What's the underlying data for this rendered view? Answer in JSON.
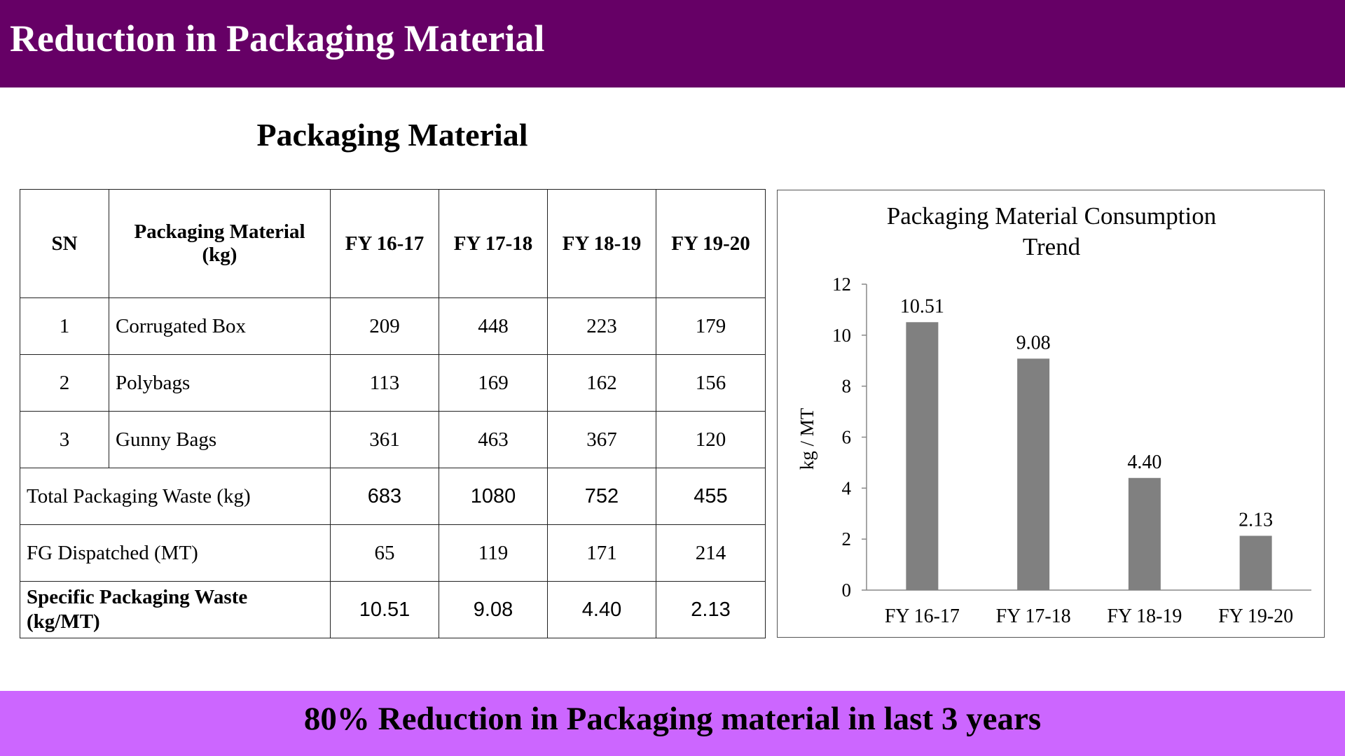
{
  "header": {
    "title": "Reduction in Packaging Material"
  },
  "section": {
    "title": "Packaging Material"
  },
  "table": {
    "headers": [
      "SN",
      "Packaging Material (kg)",
      "FY 16-17",
      "FY 17-18",
      "FY 18-19",
      "FY 19-20"
    ],
    "rows": [
      {
        "sn": "1",
        "material": "Corrugated Box",
        "values": [
          "209",
          "448",
          "223",
          "179"
        ]
      },
      {
        "sn": "2",
        "material": "Polybags",
        "values": [
          "113",
          "169",
          "162",
          "156"
        ]
      },
      {
        "sn": "3",
        "material": "Gunny Bags",
        "values": [
          "361",
          "463",
          "367",
          "120"
        ]
      }
    ],
    "total": {
      "label": "Total Packaging Waste (kg)",
      "values": [
        "683",
        "1080",
        "752",
        "455"
      ]
    },
    "fg": {
      "label": "FG Dispatched (MT)",
      "values": [
        "65",
        "119",
        "171",
        "214"
      ]
    },
    "specific": {
      "label": "Specific Packaging Waste (kg/MT)",
      "values": [
        "10.51",
        "9.08",
        "4.40",
        "2.13"
      ]
    }
  },
  "chart_data": {
    "type": "bar",
    "title": "Packaging Material Consumption Trend",
    "title_lines": [
      "Packaging Material Consumption",
      "Trend"
    ],
    "categories": [
      "FY 16-17",
      "FY 17-18",
      "FY 18-19",
      "FY 19-20"
    ],
    "values": [
      10.51,
      9.08,
      4.4,
      2.13
    ],
    "data_labels": [
      "10.51",
      "9.08",
      "4.40",
      "2.13"
    ],
    "xlabel": "",
    "ylabel": "kg / MT",
    "ylim": [
      0,
      12
    ],
    "yticks": [
      0,
      2,
      4,
      6,
      8,
      10,
      12
    ],
    "grid": false,
    "legend": "none",
    "bar_color": "#808080"
  },
  "footer": {
    "text": "80% Reduction in Packaging material in last 3 years"
  },
  "colors": {
    "header": "#660066",
    "footer": "#cc66ff"
  }
}
